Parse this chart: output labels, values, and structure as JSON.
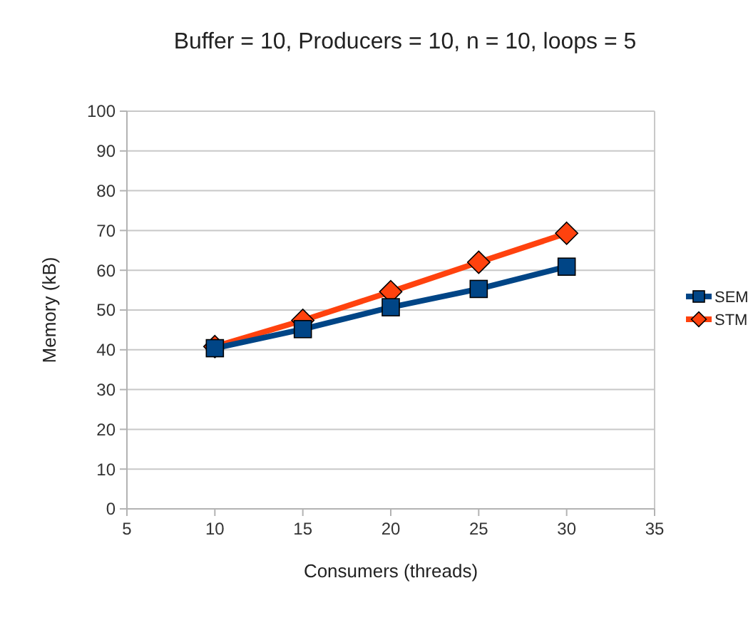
{
  "chart_data": {
    "type": "line",
    "title": "Buffer = 10, Producers = 10, n = 10, loops = 5",
    "xlabel": "Consumers (threads)",
    "ylabel": "Memory (kB)",
    "x": [
      10,
      15,
      20,
      25,
      30
    ],
    "series": [
      {
        "name": "SEM",
        "color": "#004586",
        "marker": "square",
        "values": [
          40.4,
          45.2,
          50.7,
          55.3,
          60.9
        ]
      },
      {
        "name": "STM",
        "color": "#ff420e",
        "marker": "diamond",
        "values": [
          40.8,
          47.4,
          54.6,
          62.0,
          69.3
        ]
      }
    ],
    "xlim": [
      5,
      35
    ],
    "xticks": [
      5,
      10,
      15,
      20,
      25,
      30,
      35
    ],
    "ylim": [
      0,
      100
    ],
    "yticks": [
      0,
      10,
      20,
      30,
      40,
      50,
      60,
      70,
      80,
      90,
      100
    ],
    "grid": "y",
    "legend": "right",
    "line_style": "solid"
  }
}
